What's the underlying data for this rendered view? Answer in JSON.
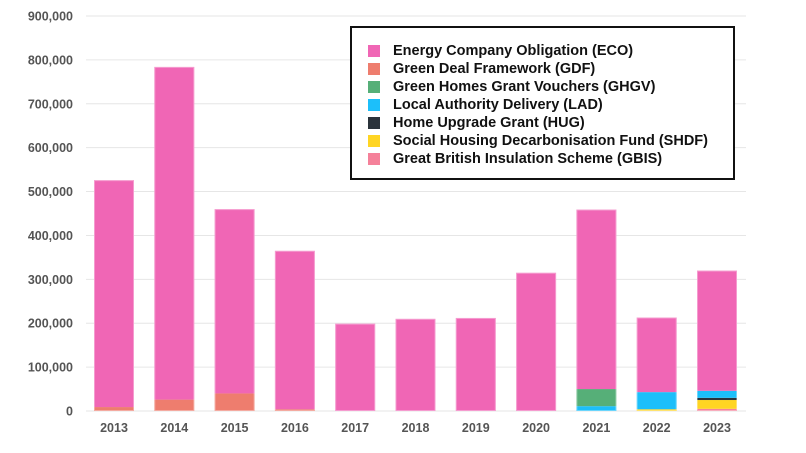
{
  "chart_data": {
    "type": "bar",
    "stacked": true,
    "title": "",
    "xlabel": "",
    "ylabel": "",
    "ylim": [
      0,
      900000
    ],
    "yticks": [
      0,
      100000,
      200000,
      300000,
      400000,
      500000,
      600000,
      700000,
      800000,
      900000
    ],
    "ytick_labels": [
      "0",
      "100,000",
      "200,000",
      "300,000",
      "400,000",
      "500,000",
      "600,000",
      "700,000",
      "800,000",
      "900,000"
    ],
    "grid": true,
    "legend_position": "top-right",
    "categories": [
      "2013",
      "2014",
      "2015",
      "2016",
      "2017",
      "2018",
      "2019",
      "2020",
      "2021",
      "2022",
      "2023"
    ],
    "series": [
      {
        "name": "Great British Insulation Scheme (GBIS)",
        "color": "#F5819A",
        "values": [
          0,
          0,
          0,
          0,
          0,
          0,
          0,
          0,
          0,
          0,
          5000
        ]
      },
      {
        "name": "Social Housing Decarbonisation Fund (SHDF)",
        "color": "#FFD523",
        "values": [
          0,
          0,
          0,
          0,
          0,
          0,
          0,
          0,
          0,
          4000,
          20000
        ]
      },
      {
        "name": "Home Upgrade Grant (HUG)",
        "color": "#2B333B",
        "values": [
          0,
          0,
          0,
          0,
          0,
          0,
          0,
          0,
          0,
          0,
          5000
        ]
      },
      {
        "name": "Local Authority Delivery (LAD)",
        "color": "#1CBFFA",
        "values": [
          0,
          0,
          0,
          0,
          0,
          0,
          0,
          0,
          11000,
          39000,
          16000
        ]
      },
      {
        "name": "Green Homes Grant Vouchers (GHGV)",
        "color": "#56AF78",
        "values": [
          0,
          0,
          0,
          0,
          0,
          0,
          0,
          0,
          39000,
          0,
          0
        ]
      },
      {
        "name": "Green Deal Framework (GDF)",
        "color": "#EE7D6E",
        "values": [
          9000,
          26000,
          40000,
          4000,
          0,
          0,
          0,
          0,
          0,
          0,
          0
        ]
      },
      {
        "name": "Energy Company Obligation (ECO)",
        "color": "#F066B5",
        "values": [
          517000,
          758000,
          420000,
          361000,
          199000,
          210000,
          212000,
          315000,
          409000,
          170000,
          274000
        ]
      }
    ],
    "legend_order": [
      "Energy Company Obligation (ECO)",
      "Green Deal Framework (GDF)",
      "Green Homes Grant Vouchers (GHGV)",
      "Local Authority Delivery (LAD)",
      "Home Upgrade Grant (HUG)",
      "Social Housing Decarbonisation Fund (SHDF)",
      "Great British Insulation Scheme (GBIS)"
    ]
  },
  "legend": {
    "items": [
      {
        "label": "Energy Company Obligation (ECO)",
        "color": "#F066B5"
      },
      {
        "label": "Green Deal Framework (GDF)",
        "color": "#EE7D6E"
      },
      {
        "label": "Green Homes Grant Vouchers (GHGV)",
        "color": "#56AF78"
      },
      {
        "label": "Local Authority Delivery (LAD)",
        "color": "#1CBFFA"
      },
      {
        "label": "Home Upgrade Grant (HUG)",
        "color": "#2B333B"
      },
      {
        "label": "Social Housing Decarbonisation Fund (SHDF)",
        "color": "#FFD523"
      },
      {
        "label": "Great British Insulation Scheme (GBIS)",
        "color": "#F5819A"
      }
    ]
  }
}
